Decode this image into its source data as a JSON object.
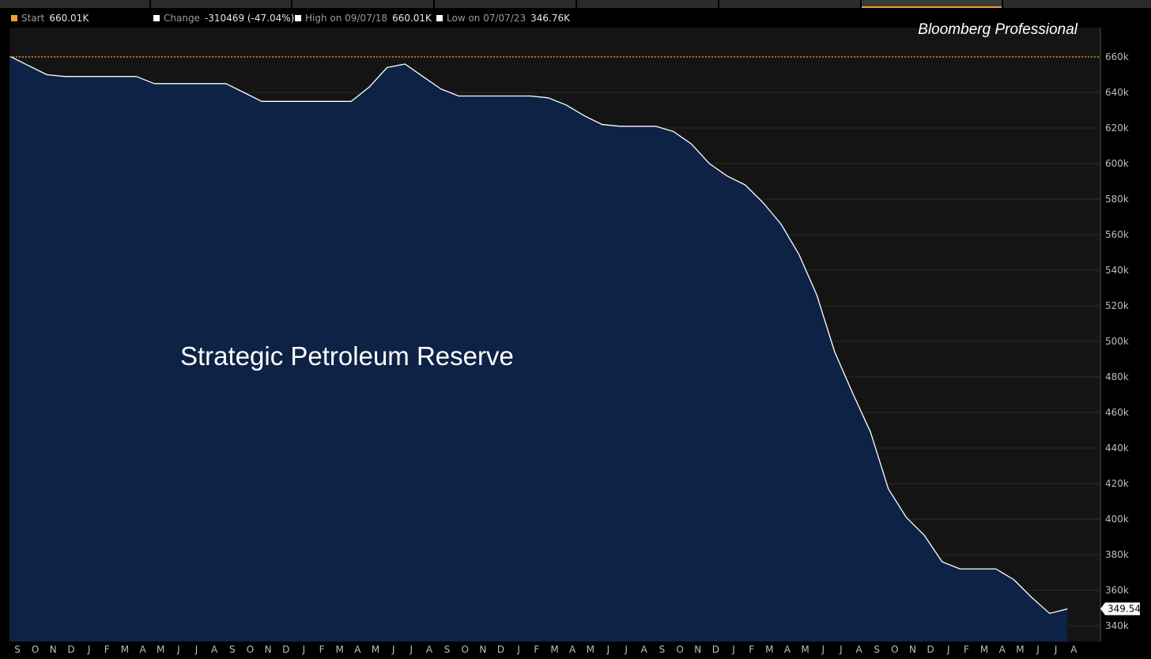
{
  "legend": {
    "start": {
      "label": "Start",
      "value": "660.01K",
      "color": "#f0a030"
    },
    "change": {
      "label": "Change",
      "value": "-310469 (-47.04%)",
      "color": "#ffffff"
    },
    "high": {
      "label": "High on 09/07/18",
      "value": "660.01K",
      "color": "#ffffff"
    },
    "low": {
      "label": "Low on 07/07/23",
      "value": "346.76K",
      "color": "#ffffff"
    }
  },
  "watermark": "Bloomberg Professional",
  "annotation": "Strategic Petroleum Reserve",
  "last_value_label": "349.54K",
  "colors": {
    "area_fill": "#0d2245",
    "line": "#ffffff",
    "start_line": "#f0a030",
    "background": "#141414",
    "grid": "#2a2a2a"
  },
  "chart_data": {
    "type": "area",
    "title": "",
    "xlabel": "",
    "ylabel": "",
    "ylim": [
      330,
      665
    ],
    "y_ticks": [
      "340k",
      "360k",
      "380k",
      "400k",
      "420k",
      "440k",
      "460k",
      "480k",
      "500k",
      "520k",
      "540k",
      "560k",
      "580k",
      "600k",
      "620k",
      "640k",
      "660k"
    ],
    "x_tick_labels": [
      "S",
      "O",
      "N",
      "D",
      "J",
      "F",
      "M",
      "A",
      "M",
      "J",
      "J",
      "A",
      "S",
      "O",
      "N",
      "D",
      "J",
      "F",
      "M",
      "A",
      "M",
      "J",
      "J",
      "A",
      "S",
      "O",
      "N",
      "D",
      "J",
      "F",
      "M",
      "A",
      "M",
      "J",
      "J",
      "A",
      "S",
      "O",
      "N",
      "D",
      "J",
      "F",
      "M",
      "A",
      "M",
      "J",
      "J",
      "A",
      "S",
      "O",
      "N",
      "D",
      "J",
      "F",
      "M",
      "A",
      "M",
      "J",
      "J",
      "A"
    ],
    "x_start": "2018-09",
    "reference_line": {
      "name": "Start",
      "value": 660.01
    },
    "last_value": 349.54,
    "grid": true,
    "series": [
      {
        "x": [
          "2018-09",
          "2018-10",
          "2018-11",
          "2018-12",
          "2019-01",
          "2019-02",
          "2019-03",
          "2019-04",
          "2019-05",
          "2019-06",
          "2019-07",
          "2019-08",
          "2019-09",
          "2019-10",
          "2019-11",
          "2019-12",
          "2020-01",
          "2020-02",
          "2020-03",
          "2020-04",
          "2020-05",
          "2020-06",
          "2020-07",
          "2020-08",
          "2020-09",
          "2020-10",
          "2020-11",
          "2020-12",
          "2021-01",
          "2021-02",
          "2021-03",
          "2021-04",
          "2021-05",
          "2021-06",
          "2021-07",
          "2021-08",
          "2021-09",
          "2021-10",
          "2021-11",
          "2021-12",
          "2022-01",
          "2022-02",
          "2022-03",
          "2022-04",
          "2022-05",
          "2022-06",
          "2022-07",
          "2022-08",
          "2022-09",
          "2022-10",
          "2022-11",
          "2022-12",
          "2023-01",
          "2023-02",
          "2023-03",
          "2023-04",
          "2023-05",
          "2023-06",
          "2023-07",
          "2023-08"
        ],
        "values": [
          660.0,
          655.0,
          650.0,
          649.0,
          649.0,
          649.0,
          649.0,
          649.0,
          645.0,
          645.0,
          645.0,
          645.0,
          645.0,
          640.0,
          635.0,
          635.0,
          635.0,
          635.0,
          635.0,
          635.0,
          643.0,
          654.0,
          656.0,
          649.0,
          642.0,
          638.0,
          638.0,
          638.0,
          638.0,
          638.0,
          637.0,
          633.0,
          627.0,
          622.0,
          621.0,
          621.0,
          621.0,
          618.0,
          611.0,
          600.0,
          593.0,
          588.0,
          578.0,
          566.0,
          549.0,
          526.0,
          494.0,
          471.0,
          449.0,
          417.0,
          401.0,
          391.0,
          376.0,
          372.0,
          372.0,
          372.0,
          366.0,
          356.0,
          347.0,
          349.5
        ]
      }
    ]
  }
}
